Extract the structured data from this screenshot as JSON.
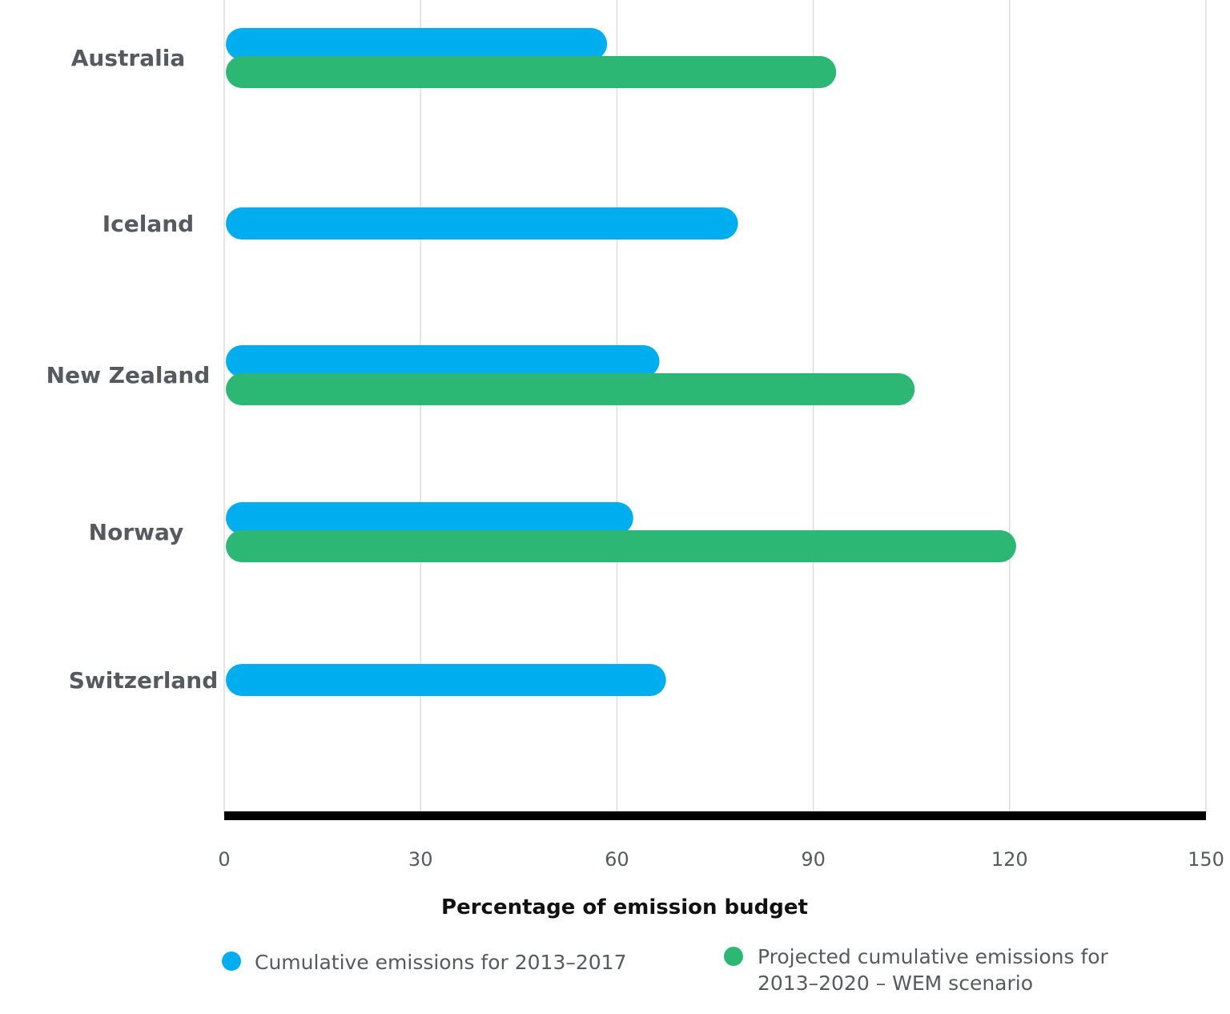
{
  "chart_data": {
    "type": "bar",
    "orientation": "horizontal",
    "categories": [
      "Australia",
      "Iceland",
      "New Zealand",
      "Norway",
      "Switzerland"
    ],
    "series": [
      {
        "name": "Cumulative emissions for 2013–2017",
        "color": "#00adef",
        "values": [
          58.5,
          78.5,
          66.5,
          62.5,
          67.5
        ]
      },
      {
        "name": "Projected cumulative emissions for 2013–2020 – WEM scenario",
        "color": "#2db774",
        "values": [
          93.5,
          null,
          105.5,
          121,
          null
        ]
      }
    ],
    "xlabel": "Percentage of emission budget",
    "xlim": [
      0,
      150
    ],
    "xticks": [
      0,
      30,
      60,
      90,
      120,
      150
    ],
    "grid": true,
    "legend_position": "bottom"
  },
  "legend": {
    "items": [
      {
        "lines": [
          "Cumulative emissions for 2013–2017"
        ],
        "color": "#00adef"
      },
      {
        "lines": [
          "Projected cumulative emissions for",
          "2013–2020 – WEM scenario"
        ],
        "color": "#2db774"
      }
    ]
  }
}
